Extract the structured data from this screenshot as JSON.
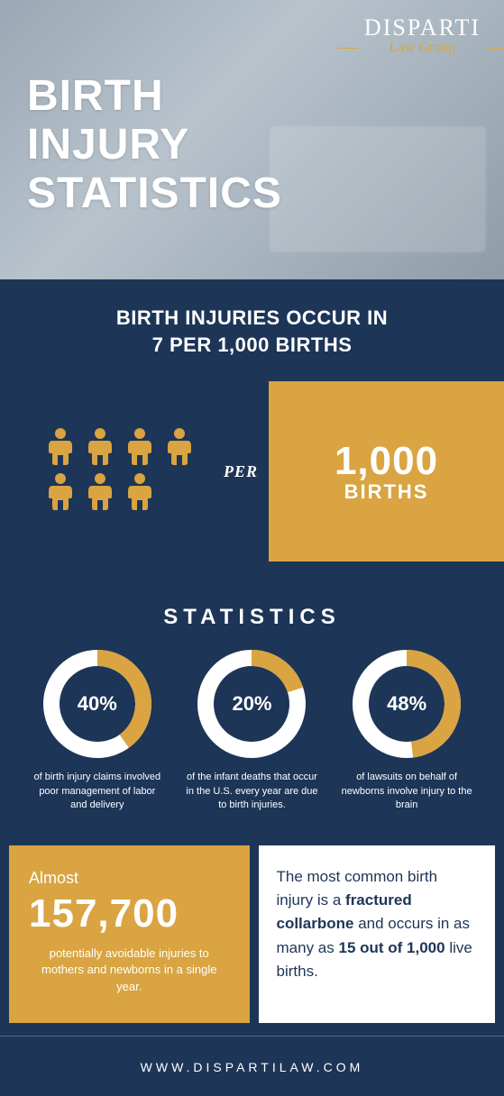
{
  "colors": {
    "navy": "#1d3557",
    "gold": "#d9a441",
    "white": "#ffffff",
    "hero_bg_from": "#9aa8b5",
    "hero_bg_to": "#8f9ca8"
  },
  "logo": {
    "main": "DISPARTI",
    "sub": "Law Group"
  },
  "hero": {
    "title_line1": "BIRTH",
    "title_line2": "INJURY",
    "title_line3": "STATISTICS",
    "title_fontsize": 48
  },
  "headline": {
    "line1": "BIRTH INJURIES OCCUR IN",
    "line2": "7 PER 1,000 BIRTHS",
    "fontsize": 22
  },
  "per_block": {
    "icon_count": 7,
    "icon_rows": [
      4,
      3
    ],
    "icon_color": "#d9a441",
    "per_label": "PER",
    "number": "1,000",
    "unit": "BIRTHS",
    "box_color": "#d9a441",
    "box_text_color": "#ffffff"
  },
  "statistics": {
    "title": "STATISTICS",
    "title_letterspacing": 6,
    "donut_size": 120,
    "donut_stroke": 18,
    "donut_track_color": "#ffffff",
    "donut_fill_color": "#d9a441",
    "items": [
      {
        "pct": 40,
        "label": "40%",
        "caption": "of birth injury claims involved poor management of labor and delivery"
      },
      {
        "pct": 20,
        "label": "20%",
        "caption": "of the infant deaths that occur in the U.S. every year are due to birth injuries."
      },
      {
        "pct": 48,
        "label": "48%",
        "caption": "of lawsuits on behalf of newborns involve injury to the brain"
      }
    ]
  },
  "bottom": {
    "left": {
      "almost": "Almost",
      "number": "157,700",
      "desc": "potentially avoidable injuries to mothers and newborns in a single year.",
      "bg": "#d9a441",
      "text": "#ffffff"
    },
    "right": {
      "pre": "The most common birth injury is a ",
      "bold1": "fractured collarbone",
      "mid": " and occurs in as many as ",
      "bold2": "15 out of 1,000",
      "post": " live births.",
      "bg": "#ffffff",
      "text": "#1d3557"
    }
  },
  "footer": {
    "text": "WWW.DISPARTILAW.COM",
    "letterspacing": 4
  }
}
